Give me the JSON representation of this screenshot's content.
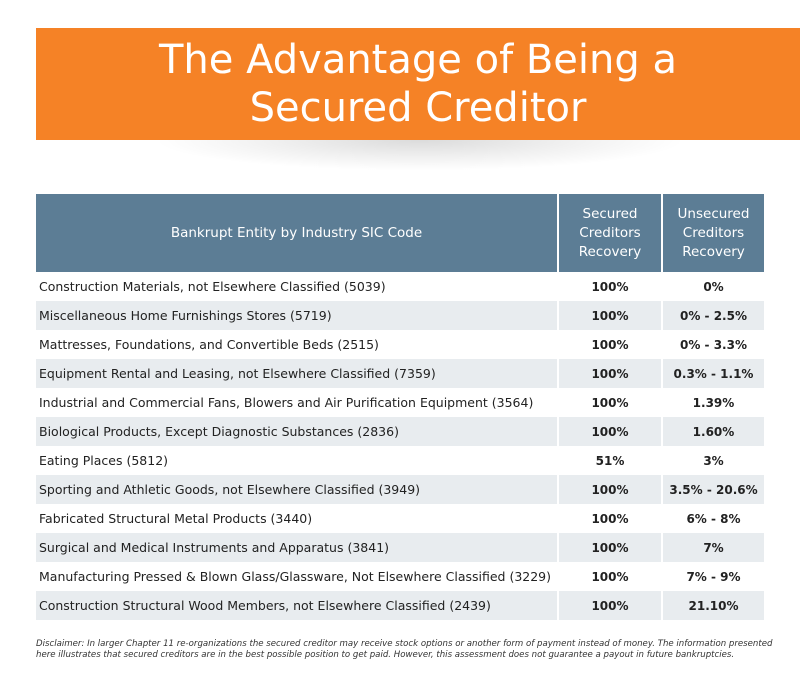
{
  "header": {
    "title": "The Advantage of Being a Secured Creditor"
  },
  "table": {
    "columns": [
      "Bankrupt Entity by Industry SIC Code",
      "Secured Creditors Recovery",
      "Unsecured Creditors Recovery"
    ],
    "rows": [
      {
        "entity": "Construction Materials, not Elsewhere Classified (5039)",
        "secured": "100%",
        "unsecured": "0%"
      },
      {
        "entity": "Miscellaneous Home Furnishings Stores (5719)",
        "secured": "100%",
        "unsecured": "0% - 2.5%"
      },
      {
        "entity": "Mattresses, Foundations, and Convertible Beds (2515)",
        "secured": "100%",
        "unsecured": "0% - 3.3%"
      },
      {
        "entity": "Equipment Rental and Leasing, not Elsewhere Classified (7359)",
        "secured": "100%",
        "unsecured": "0.3% - 1.1%"
      },
      {
        "entity": "Industrial and Commercial Fans, Blowers and Air Purification Equipment (3564)",
        "secured": "100%",
        "unsecured": "1.39%"
      },
      {
        "entity": "Biological Products, Except Diagnostic Substances (2836)",
        "secured": "100%",
        "unsecured": "1.60%"
      },
      {
        "entity": "Eating Places (5812)",
        "secured": "51%",
        "unsecured": "3%"
      },
      {
        "entity": "Sporting and Athletic Goods, not Elsewhere Classified (3949)",
        "secured": "100%",
        "unsecured": "3.5% - 20.6%"
      },
      {
        "entity": "Fabricated Structural Metal Products (3440)",
        "secured": "100%",
        "unsecured": "6% - 8%"
      },
      {
        "entity": "Surgical and Medical Instruments and Apparatus (3841)",
        "secured": "100%",
        "unsecured": "7%"
      },
      {
        "entity": "Manufacturing Pressed & Blown Glass/Glassware, Not Elsewhere Classified (3229)",
        "secured": "100%",
        "unsecured": "7% - 9%"
      },
      {
        "entity": "Construction Structural Wood Members, not Elsewhere Classified (2439)",
        "secured": "100%",
        "unsecured": "21.10%"
      }
    ]
  },
  "disclaimer": "Disclaimer: In larger Chapter 11 re-organizations the secured creditor may receive stock options or another form of payment instead of money. The information presented here illustrates that secured creditors are in the best possible position to get paid. However, this assessment does not guarantee a payout in future bankruptcies.",
  "colors": {
    "banner": "#f58226",
    "table_header": "#5c7d95",
    "row_stripe": "#e8ecef"
  }
}
